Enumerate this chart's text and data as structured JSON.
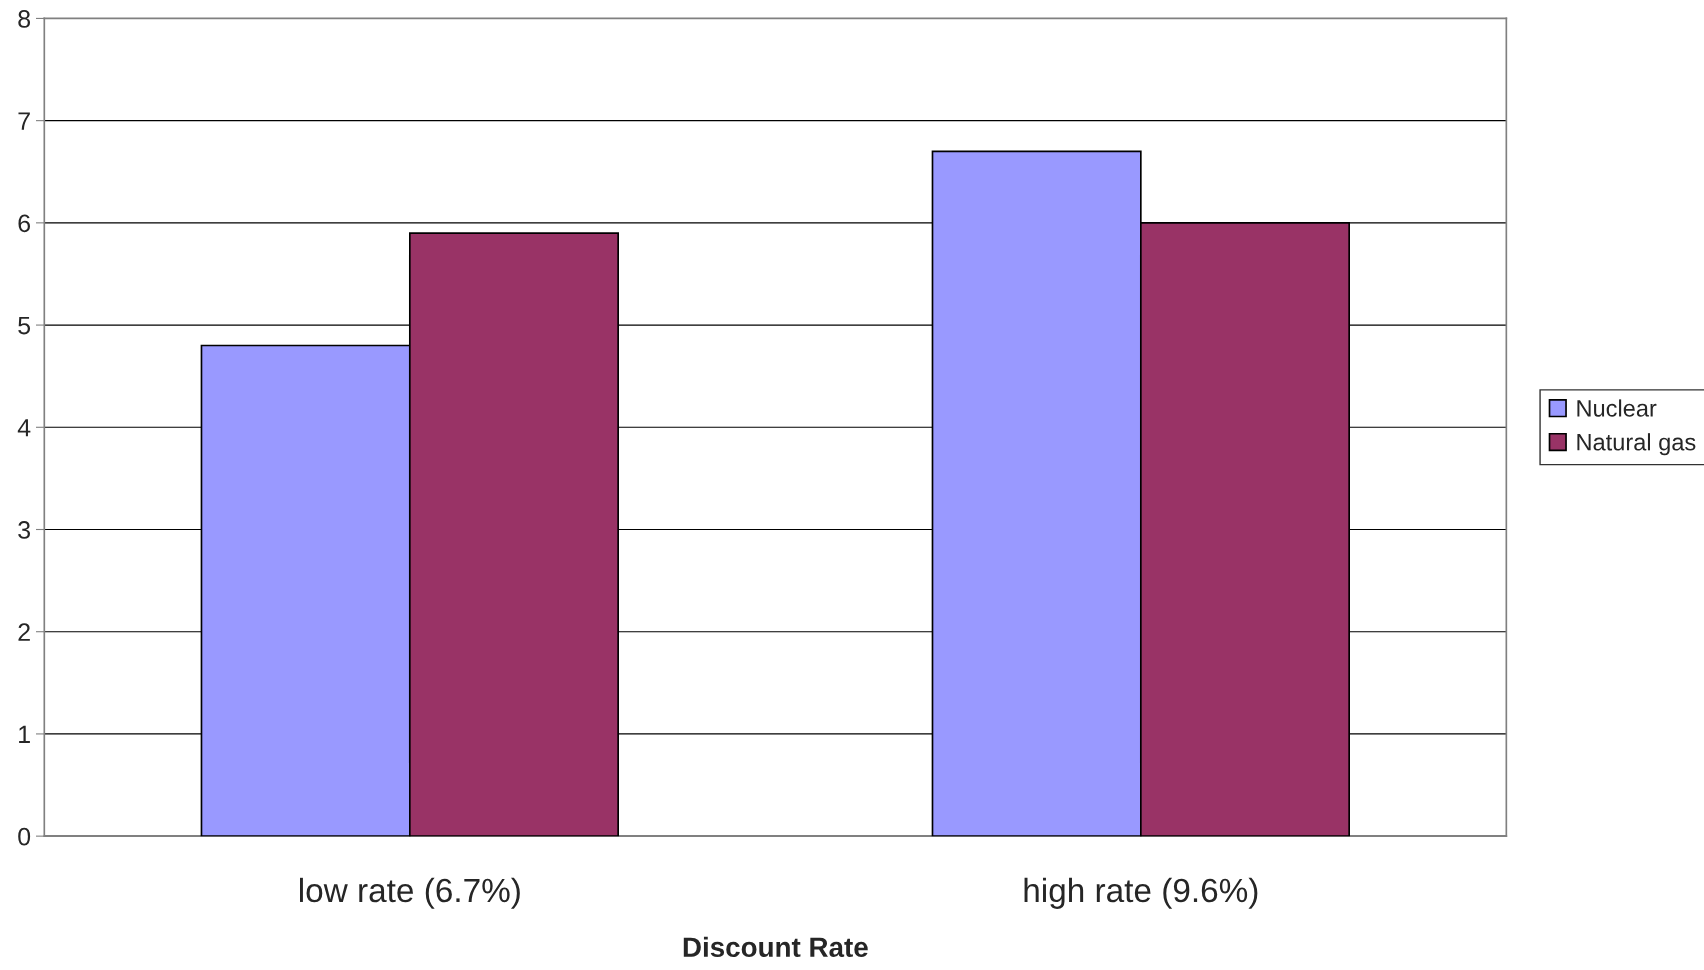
{
  "chart_data": {
    "type": "bar",
    "xlabel": "Discount Rate",
    "categories": [
      "low rate (6.7%)",
      "high rate (9.6%)"
    ],
    "series": [
      {
        "name": "Nuclear",
        "color": "#9999ff",
        "values": [
          4.8,
          6.7
        ]
      },
      {
        "name": "Natural gas",
        "color": "#993366",
        "values": [
          5.9,
          6.0
        ]
      }
    ],
    "ylim": [
      0,
      8
    ],
    "yticks": [
      0,
      1,
      2,
      3,
      4,
      5,
      6,
      7,
      8
    ],
    "grid": "y",
    "legend": "right"
  }
}
